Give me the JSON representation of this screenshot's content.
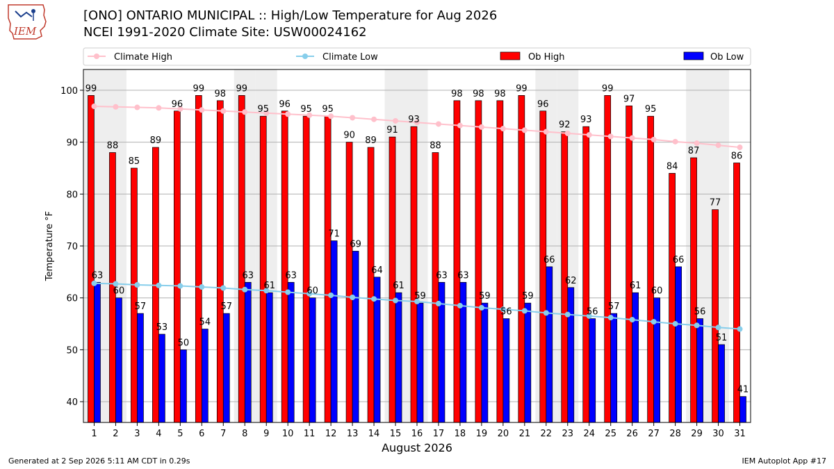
{
  "logo": {
    "text": "IEM",
    "name": "IEM logo"
  },
  "header": {
    "title": "[ONO] ONTARIO MUNICIPAL :: High/Low Temperature for Aug 2026",
    "subtitle": "NCEI 1991-2020 Climate Site: USW00024162"
  },
  "footer": {
    "left": "Generated at 2 Sep 2026 5:11 AM CDT in 0.29s",
    "right": "IEM Autoplot App #17"
  },
  "colors": {
    "ob_high": "#ff0000",
    "ob_low": "#0000ff",
    "climate_high": "#ffc0cb",
    "climate_low": "#87ceeb",
    "weekend_band": "#eeeeee",
    "grid": "#b0b0b0"
  },
  "chart_data": {
    "type": "bar",
    "xlabel": "August 2026",
    "ylabel": "Temperature °F",
    "ylim": [
      36,
      104
    ],
    "yticks": [
      40,
      50,
      60,
      70,
      80,
      90,
      100
    ],
    "grid": "horizontal",
    "legend_position": "top",
    "categories": [
      "1",
      "2",
      "3",
      "4",
      "5",
      "6",
      "7",
      "8",
      "9",
      "10",
      "11",
      "12",
      "13",
      "14",
      "15",
      "16",
      "17",
      "18",
      "19",
      "20",
      "21",
      "22",
      "23",
      "24",
      "25",
      "26",
      "27",
      "28",
      "29",
      "30",
      "31"
    ],
    "weekend_days": [
      1,
      2,
      8,
      9,
      15,
      16,
      22,
      23,
      29,
      30
    ],
    "series": [
      {
        "name": "Ob High",
        "kind": "bar",
        "values": [
          99,
          88,
          85,
          89,
          96,
          99,
          98,
          99,
          95,
          96,
          95,
          95,
          90,
          89,
          91,
          93,
          88,
          98,
          98,
          98,
          99,
          96,
          92,
          93,
          99,
          97,
          95,
          84,
          87,
          77,
          86
        ]
      },
      {
        "name": "Ob Low",
        "kind": "bar",
        "values": [
          63,
          60,
          57,
          53,
          50,
          54,
          57,
          63,
          61,
          63,
          60,
          71,
          69,
          64,
          61,
          59,
          63,
          63,
          59,
          56,
          59,
          66,
          62,
          56,
          57,
          61,
          60,
          66,
          56,
          51,
          41
        ]
      },
      {
        "name": "Climate High",
        "kind": "line",
        "values": [
          96.9,
          96.8,
          96.7,
          96.6,
          96.4,
          96.2,
          96.0,
          95.8,
          95.6,
          95.4,
          95.2,
          95.0,
          94.7,
          94.4,
          94.1,
          93.8,
          93.5,
          93.2,
          92.9,
          92.6,
          92.3,
          92.0,
          91.7,
          91.4,
          91.1,
          90.8,
          90.5,
          90.1,
          89.8,
          89.4,
          89.0
        ]
      },
      {
        "name": "Climate Low",
        "kind": "line",
        "values": [
          62.8,
          62.7,
          62.5,
          62.4,
          62.3,
          62.1,
          61.9,
          61.6,
          61.4,
          61.1,
          60.8,
          60.5,
          60.1,
          59.8,
          59.5,
          59.3,
          58.9,
          58.5,
          58.1,
          57.8,
          57.5,
          57.1,
          56.8,
          56.5,
          56.2,
          55.8,
          55.4,
          55.0,
          54.7,
          54.3,
          54.0
        ]
      }
    ]
  }
}
